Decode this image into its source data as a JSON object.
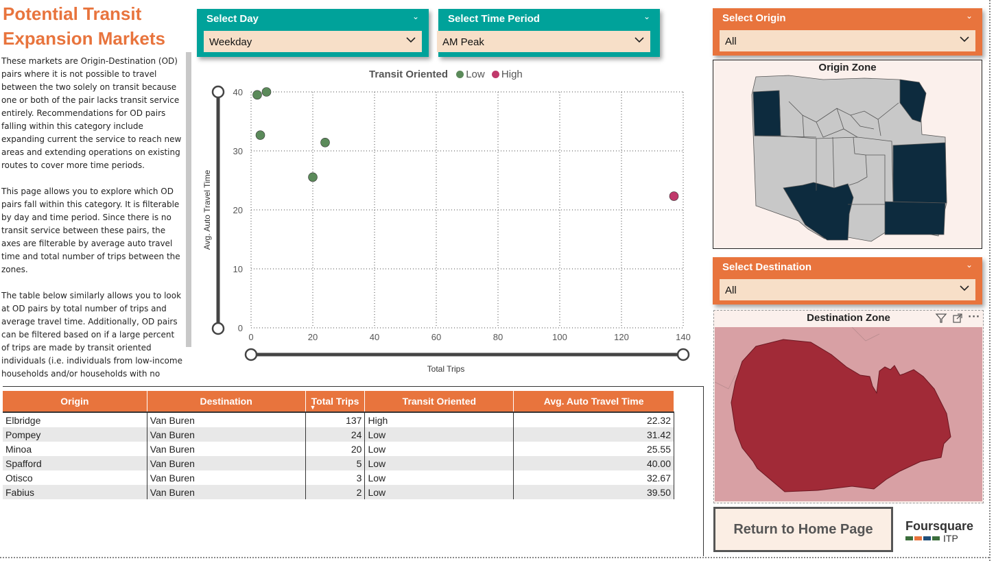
{
  "page": {
    "title": "Potential Transit Expansion Markets",
    "description": [
      "These markets are Origin-Destination (OD) pairs where it is not possible to travel between the two solely on transit because one or both of the pair lacks transit service entirely. Recommendations for OD pairs falling within this category include expanding current the service to reach new areas and extending operations on existing routes to cover more time periods.",
      "This page allows you to explore which OD pairs fall within this category. It is filterable by day and time period. Since there is no transit service between these pairs, the axes are filterable by average auto travel time and total number of trips between the zones.",
      "The table below similarly allows you to look at OD pairs by total number of trips and average travel time. Additionally, OD pairs can be filtered based on if a large percent of trips are made by transit oriented individuals (i.e. individuals from low-income households and/or households with no"
    ]
  },
  "slicers": {
    "day": {
      "label": "Select Day",
      "value": "Weekday"
    },
    "time": {
      "label": "Select Time Period",
      "value": "AM Peak"
    },
    "origin": {
      "label": "Select Origin",
      "value": "All"
    },
    "destination": {
      "label": "Select Destination",
      "value": "All"
    }
  },
  "chart_data": {
    "type": "scatter",
    "xlabel": "Total Trips",
    "ylabel": "Avg. Auto Travel Time",
    "xlim": [
      0,
      140
    ],
    "ylim": [
      0,
      40
    ],
    "xticks": [
      0,
      20,
      40,
      60,
      80,
      100,
      120,
      140
    ],
    "yticks": [
      0,
      10,
      20,
      30,
      40
    ],
    "grid": true,
    "legend": {
      "title": "Transit Oriented",
      "placement": "top"
    },
    "series": [
      {
        "name": "Low",
        "color": "#5b8a5a",
        "points": [
          {
            "x": 24,
            "y": 31.42
          },
          {
            "x": 20,
            "y": 25.55
          },
          {
            "x": 5,
            "y": 40.0
          },
          {
            "x": 3,
            "y": 32.67
          },
          {
            "x": 2,
            "y": 39.5
          }
        ]
      },
      {
        "name": "High",
        "color": "#c0396b",
        "points": [
          {
            "x": 137,
            "y": 22.32
          }
        ]
      }
    ]
  },
  "table": {
    "columns": [
      "Origin",
      "Destination",
      "Total Trips",
      "Transit Oriented",
      "Avg. Auto Travel Time"
    ],
    "rows": [
      [
        "Elbridge",
        "Van Buren",
        "137",
        "High",
        "22.32"
      ],
      [
        "Pompey",
        "Van Buren",
        "24",
        "Low",
        "31.42"
      ],
      [
        "Minoa",
        "Van Buren",
        "20",
        "Low",
        "25.55"
      ],
      [
        "Spafford",
        "Van Buren",
        "5",
        "Low",
        "40.00"
      ],
      [
        "Otisco",
        "Van Buren",
        "3",
        "Low",
        "32.67"
      ],
      [
        "Fabius",
        "Van Buren",
        "2",
        "Low",
        "39.50"
      ]
    ]
  },
  "maps": {
    "origin": {
      "title": "Origin Zone",
      "selected_color": "#0d2b3e",
      "base_color": "#c8c8c8"
    },
    "destination": {
      "title": "Destination Zone",
      "fill_color": "#a12a37",
      "bg_color": "#d8a0a4"
    }
  },
  "icons": {
    "filter": "filter-icon",
    "focus": "focus-mode-icon",
    "more": "more-options-icon"
  },
  "home_button": {
    "label": "Return to Home Page"
  },
  "logo": {
    "line1": "Foursquare",
    "line2": "ITP"
  }
}
